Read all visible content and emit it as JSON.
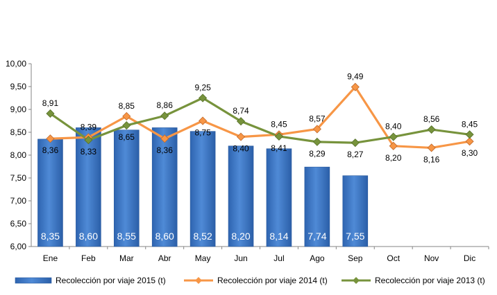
{
  "chart_data": {
    "type": "bar",
    "categories": [
      "Ene",
      "Feb",
      "Mar",
      "Abr",
      "May",
      "Jun",
      "Jul",
      "Ago",
      "Sep",
      "Oct",
      "Nov",
      "Dic"
    ],
    "ylim": [
      6.0,
      10.0
    ],
    "ytick_labels": [
      "6,00",
      "6,50",
      "7,00",
      "7,50",
      "8,00",
      "8,50",
      "9,00",
      "9,50",
      "10,00"
    ],
    "grid": false,
    "legend_position": "bottom",
    "series": [
      {
        "name": "Recolección por viaje 2015 (t)",
        "kind": "bar",
        "color": "#3A75C4",
        "values": [
          8.35,
          8.6,
          8.55,
          8.6,
          8.52,
          8.2,
          8.14,
          7.74,
          7.55,
          null,
          null,
          null
        ],
        "labels": [
          "8,35",
          "8,60",
          "8,55",
          "8,60",
          "8,52",
          "8,20",
          "8,14",
          "7,74",
          "7,55",
          "",
          "",
          ""
        ]
      },
      {
        "name": "Recolección por viaje 2014 (t)",
        "kind": "line",
        "color": "#F79646",
        "values": [
          8.36,
          8.39,
          8.85,
          8.36,
          8.75,
          8.4,
          8.45,
          8.57,
          9.49,
          8.2,
          8.16,
          8.3
        ],
        "labels": [
          "8,36",
          "8,39",
          "8,85",
          "8,36",
          "8,75",
          "8,40",
          "8,45",
          "8,57",
          "9,49",
          "8,20",
          "8,16",
          "8,30"
        ]
      },
      {
        "name": "Recolección por viaje 2013 (t)",
        "kind": "line",
        "color": "#77933C",
        "values": [
          8.91,
          8.33,
          8.65,
          8.86,
          9.25,
          8.74,
          8.41,
          8.29,
          8.27,
          8.4,
          8.56,
          8.45
        ],
        "labels": [
          "8,91",
          "8,33",
          "8,65",
          "8,86",
          "9,25",
          "8,74",
          "8,41",
          "8,29",
          "8,27",
          "8,40",
          "8,56",
          "8,45"
        ]
      }
    ]
  }
}
